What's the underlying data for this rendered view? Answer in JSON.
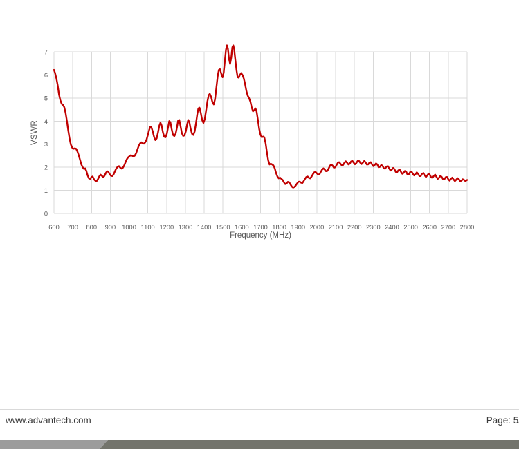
{
  "footer": {
    "website": "www.advantech.com",
    "page_label": "Page: 5/",
    "text_color": "#3a3a3a",
    "separator_color": "#d9d9d9",
    "bar": {
      "light_color": "#9c9c9c",
      "dark_color": "#73746c"
    }
  },
  "chart_data": {
    "type": "line",
    "title": "",
    "xlabel": "Frequency (MHz)",
    "ylabel": "VSWR",
    "xlim": [
      600,
      2800
    ],
    "ylim": [
      0,
      7
    ],
    "x_tick_step": 100,
    "y_tick_step": 1,
    "grid": true,
    "grid_color": "#d9d9d9",
    "tick_color": "#595959",
    "legend": "none",
    "series": [
      {
        "name": "VSWR",
        "color": "#c00000",
        "points": [
          [
            600,
            6.22
          ],
          [
            606,
            6.08
          ],
          [
            613,
            5.85
          ],
          [
            620,
            5.55
          ],
          [
            627,
            5.15
          ],
          [
            634,
            4.9
          ],
          [
            641,
            4.75
          ],
          [
            648,
            4.7
          ],
          [
            655,
            4.6
          ],
          [
            662,
            4.35
          ],
          [
            669,
            4.0
          ],
          [
            676,
            3.6
          ],
          [
            683,
            3.25
          ],
          [
            690,
            2.98
          ],
          [
            697,
            2.85
          ],
          [
            704,
            2.8
          ],
          [
            711,
            2.82
          ],
          [
            718,
            2.8
          ],
          [
            725,
            2.68
          ],
          [
            732,
            2.52
          ],
          [
            739,
            2.32
          ],
          [
            746,
            2.12
          ],
          [
            753,
            2.0
          ],
          [
            760,
            1.93
          ],
          [
            766,
            1.95
          ],
          [
            772,
            1.85
          ],
          [
            779,
            1.65
          ],
          [
            786,
            1.52
          ],
          [
            793,
            1.5
          ],
          [
            800,
            1.58
          ],
          [
            806,
            1.6
          ],
          [
            813,
            1.48
          ],
          [
            820,
            1.42
          ],
          [
            827,
            1.4
          ],
          [
            834,
            1.48
          ],
          [
            841,
            1.6
          ],
          [
            848,
            1.68
          ],
          [
            855,
            1.63
          ],
          [
            862,
            1.57
          ],
          [
            869,
            1.63
          ],
          [
            876,
            1.75
          ],
          [
            883,
            1.83
          ],
          [
            890,
            1.8
          ],
          [
            897,
            1.7
          ],
          [
            904,
            1.63
          ],
          [
            911,
            1.62
          ],
          [
            918,
            1.7
          ],
          [
            925,
            1.83
          ],
          [
            932,
            1.95
          ],
          [
            939,
            2.02
          ],
          [
            946,
            2.05
          ],
          [
            953,
            1.98
          ],
          [
            960,
            1.94
          ],
          [
            967,
            1.98
          ],
          [
            974,
            2.08
          ],
          [
            981,
            2.22
          ],
          [
            988,
            2.35
          ],
          [
            995,
            2.43
          ],
          [
            1002,
            2.48
          ],
          [
            1009,
            2.52
          ],
          [
            1016,
            2.5
          ],
          [
            1023,
            2.47
          ],
          [
            1030,
            2.5
          ],
          [
            1037,
            2.6
          ],
          [
            1044,
            2.76
          ],
          [
            1051,
            2.92
          ],
          [
            1058,
            3.03
          ],
          [
            1065,
            3.08
          ],
          [
            1072,
            3.04
          ],
          [
            1079,
            3.02
          ],
          [
            1086,
            3.08
          ],
          [
            1093,
            3.2
          ],
          [
            1100,
            3.4
          ],
          [
            1107,
            3.62
          ],
          [
            1113,
            3.76
          ],
          [
            1119,
            3.73
          ],
          [
            1126,
            3.55
          ],
          [
            1133,
            3.32
          ],
          [
            1140,
            3.18
          ],
          [
            1147,
            3.25
          ],
          [
            1154,
            3.5
          ],
          [
            1161,
            3.8
          ],
          [
            1167,
            3.93
          ],
          [
            1173,
            3.82
          ],
          [
            1180,
            3.52
          ],
          [
            1187,
            3.32
          ],
          [
            1194,
            3.3
          ],
          [
            1201,
            3.45
          ],
          [
            1208,
            3.75
          ],
          [
            1214,
            4.0
          ],
          [
            1220,
            3.95
          ],
          [
            1227,
            3.65
          ],
          [
            1234,
            3.4
          ],
          [
            1241,
            3.35
          ],
          [
            1248,
            3.45
          ],
          [
            1255,
            3.72
          ],
          [
            1261,
            4.02
          ],
          [
            1267,
            4.05
          ],
          [
            1274,
            3.78
          ],
          [
            1281,
            3.48
          ],
          [
            1288,
            3.36
          ],
          [
            1295,
            3.38
          ],
          [
            1302,
            3.55
          ],
          [
            1309,
            3.85
          ],
          [
            1315,
            4.05
          ],
          [
            1321,
            3.95
          ],
          [
            1328,
            3.65
          ],
          [
            1335,
            3.45
          ],
          [
            1342,
            3.4
          ],
          [
            1349,
            3.55
          ],
          [
            1356,
            3.9
          ],
          [
            1363,
            4.3
          ],
          [
            1369,
            4.55
          ],
          [
            1375,
            4.58
          ],
          [
            1382,
            4.35
          ],
          [
            1389,
            4.05
          ],
          [
            1396,
            3.92
          ],
          [
            1403,
            4.08
          ],
          [
            1410,
            4.45
          ],
          [
            1417,
            4.85
          ],
          [
            1424,
            5.12
          ],
          [
            1430,
            5.18
          ],
          [
            1437,
            5.05
          ],
          [
            1444,
            4.82
          ],
          [
            1451,
            4.72
          ],
          [
            1458,
            4.95
          ],
          [
            1465,
            5.45
          ],
          [
            1472,
            5.95
          ],
          [
            1478,
            6.22
          ],
          [
            1484,
            6.25
          ],
          [
            1491,
            6.05
          ],
          [
            1498,
            5.9
          ],
          [
            1504,
            6.1
          ],
          [
            1510,
            6.6
          ],
          [
            1516,
            7.1
          ],
          [
            1521,
            7.28
          ],
          [
            1526,
            7.15
          ],
          [
            1532,
            6.7
          ],
          [
            1538,
            6.48
          ],
          [
            1544,
            6.75
          ],
          [
            1550,
            7.2
          ],
          [
            1555,
            7.28
          ],
          [
            1560,
            7.1
          ],
          [
            1566,
            6.65
          ],
          [
            1572,
            6.2
          ],
          [
            1578,
            5.9
          ],
          [
            1584,
            5.88
          ],
          [
            1590,
            6.0
          ],
          [
            1597,
            6.08
          ],
          [
            1604,
            6.0
          ],
          [
            1611,
            5.85
          ],
          [
            1618,
            5.6
          ],
          [
            1625,
            5.3
          ],
          [
            1632,
            5.1
          ],
          [
            1639,
            5.0
          ],
          [
            1646,
            4.85
          ],
          [
            1653,
            4.6
          ],
          [
            1660,
            4.42
          ],
          [
            1667,
            4.48
          ],
          [
            1673,
            4.55
          ],
          [
            1679,
            4.42
          ],
          [
            1686,
            4.05
          ],
          [
            1693,
            3.65
          ],
          [
            1700,
            3.4
          ],
          [
            1707,
            3.3
          ],
          [
            1714,
            3.33
          ],
          [
            1720,
            3.3
          ],
          [
            1727,
            3.05
          ],
          [
            1734,
            2.65
          ],
          [
            1741,
            2.3
          ],
          [
            1748,
            2.12
          ],
          [
            1755,
            2.15
          ],
          [
            1762,
            2.12
          ],
          [
            1769,
            2.08
          ],
          [
            1776,
            1.95
          ],
          [
            1783,
            1.75
          ],
          [
            1790,
            1.6
          ],
          [
            1797,
            1.52
          ],
          [
            1804,
            1.55
          ],
          [
            1811,
            1.5
          ],
          [
            1818,
            1.45
          ],
          [
            1825,
            1.35
          ],
          [
            1832,
            1.27
          ],
          [
            1839,
            1.3
          ],
          [
            1846,
            1.37
          ],
          [
            1853,
            1.35
          ],
          [
            1860,
            1.25
          ],
          [
            1867,
            1.16
          ],
          [
            1874,
            1.12
          ],
          [
            1881,
            1.15
          ],
          [
            1888,
            1.22
          ],
          [
            1895,
            1.3
          ],
          [
            1902,
            1.37
          ],
          [
            1909,
            1.38
          ],
          [
            1916,
            1.33
          ],
          [
            1923,
            1.32
          ],
          [
            1930,
            1.4
          ],
          [
            1937,
            1.5
          ],
          [
            1944,
            1.58
          ],
          [
            1951,
            1.6
          ],
          [
            1958,
            1.54
          ],
          [
            1965,
            1.52
          ],
          [
            1972,
            1.6
          ],
          [
            1979,
            1.7
          ],
          [
            1986,
            1.78
          ],
          [
            1993,
            1.8
          ],
          [
            2000,
            1.74
          ],
          [
            2007,
            1.68
          ],
          [
            2014,
            1.7
          ],
          [
            2021,
            1.8
          ],
          [
            2028,
            1.9
          ],
          [
            2035,
            1.95
          ],
          [
            2042,
            1.9
          ],
          [
            2049,
            1.83
          ],
          [
            2056,
            1.84
          ],
          [
            2063,
            1.95
          ],
          [
            2070,
            2.07
          ],
          [
            2077,
            2.12
          ],
          [
            2084,
            2.07
          ],
          [
            2091,
            1.98
          ],
          [
            2098,
            2.0
          ],
          [
            2105,
            2.1
          ],
          [
            2112,
            2.2
          ],
          [
            2119,
            2.22
          ],
          [
            2126,
            2.15
          ],
          [
            2133,
            2.08
          ],
          [
            2140,
            2.1
          ],
          [
            2147,
            2.2
          ],
          [
            2154,
            2.26
          ],
          [
            2161,
            2.2
          ],
          [
            2168,
            2.12
          ],
          [
            2175,
            2.15
          ],
          [
            2182,
            2.25
          ],
          [
            2189,
            2.28
          ],
          [
            2196,
            2.2
          ],
          [
            2203,
            2.13
          ],
          [
            2210,
            2.18
          ],
          [
            2217,
            2.27
          ],
          [
            2224,
            2.28
          ],
          [
            2231,
            2.2
          ],
          [
            2238,
            2.14
          ],
          [
            2245,
            2.2
          ],
          [
            2252,
            2.27
          ],
          [
            2259,
            2.22
          ],
          [
            2266,
            2.12
          ],
          [
            2273,
            2.12
          ],
          [
            2280,
            2.2
          ],
          [
            2287,
            2.22
          ],
          [
            2294,
            2.12
          ],
          [
            2301,
            2.05
          ],
          [
            2308,
            2.1
          ],
          [
            2315,
            2.17
          ],
          [
            2322,
            2.12
          ],
          [
            2329,
            2.0
          ],
          [
            2336,
            2.02
          ],
          [
            2343,
            2.1
          ],
          [
            2350,
            2.06
          ],
          [
            2357,
            1.95
          ],
          [
            2364,
            1.94
          ],
          [
            2371,
            2.03
          ],
          [
            2378,
            2.05
          ],
          [
            2385,
            1.95
          ],
          [
            2392,
            1.86
          ],
          [
            2399,
            1.9
          ],
          [
            2406,
            1.97
          ],
          [
            2413,
            1.92
          ],
          [
            2420,
            1.8
          ],
          [
            2427,
            1.78
          ],
          [
            2434,
            1.87
          ],
          [
            2441,
            1.9
          ],
          [
            2448,
            1.8
          ],
          [
            2455,
            1.72
          ],
          [
            2462,
            1.76
          ],
          [
            2469,
            1.84
          ],
          [
            2476,
            1.8
          ],
          [
            2483,
            1.68
          ],
          [
            2490,
            1.7
          ],
          [
            2497,
            1.8
          ],
          [
            2504,
            1.82
          ],
          [
            2511,
            1.72
          ],
          [
            2518,
            1.65
          ],
          [
            2525,
            1.7
          ],
          [
            2532,
            1.78
          ],
          [
            2539,
            1.72
          ],
          [
            2546,
            1.62
          ],
          [
            2553,
            1.62
          ],
          [
            2560,
            1.72
          ],
          [
            2567,
            1.75
          ],
          [
            2574,
            1.65
          ],
          [
            2581,
            1.58
          ],
          [
            2588,
            1.65
          ],
          [
            2595,
            1.73
          ],
          [
            2602,
            1.67
          ],
          [
            2609,
            1.56
          ],
          [
            2616,
            1.55
          ],
          [
            2623,
            1.63
          ],
          [
            2630,
            1.68
          ],
          [
            2637,
            1.58
          ],
          [
            2644,
            1.5
          ],
          [
            2651,
            1.55
          ],
          [
            2658,
            1.63
          ],
          [
            2665,
            1.58
          ],
          [
            2672,
            1.48
          ],
          [
            2679,
            1.48
          ],
          [
            2686,
            1.57
          ],
          [
            2693,
            1.58
          ],
          [
            2700,
            1.48
          ],
          [
            2707,
            1.42
          ],
          [
            2714,
            1.5
          ],
          [
            2721,
            1.55
          ],
          [
            2728,
            1.47
          ],
          [
            2735,
            1.4
          ],
          [
            2742,
            1.46
          ],
          [
            2749,
            1.53
          ],
          [
            2756,
            1.48
          ],
          [
            2763,
            1.4
          ],
          [
            2770,
            1.42
          ],
          [
            2777,
            1.48
          ],
          [
            2784,
            1.45
          ],
          [
            2791,
            1.4
          ],
          [
            2800,
            1.45
          ]
        ]
      }
    ]
  }
}
